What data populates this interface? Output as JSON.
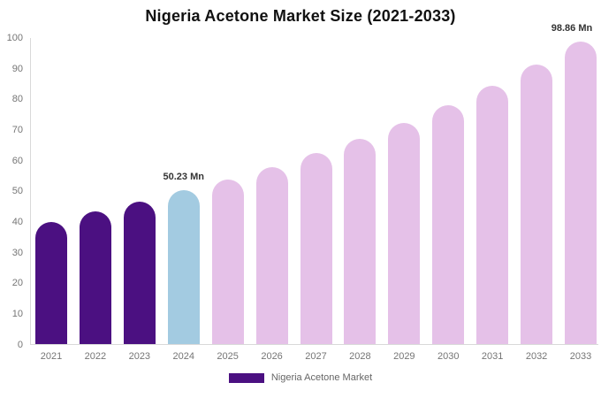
{
  "chart_data": {
    "type": "bar",
    "title": "Nigeria Acetone Market Size (2021-2033)",
    "categories": [
      "2021",
      "2022",
      "2023",
      "2024",
      "2025",
      "2026",
      "2027",
      "2028",
      "2029",
      "2030",
      "2031",
      "2032",
      "2033"
    ],
    "values": [
      40.1,
      43.3,
      46.6,
      50.23,
      53.7,
      57.9,
      62.4,
      67.2,
      72.4,
      78.0,
      84.3,
      91.2,
      98.86
    ],
    "unit": "Mn",
    "xlabel": "",
    "ylabel": "",
    "ylim": [
      0,
      100
    ],
    "yticks": [
      0,
      10,
      20,
      30,
      40,
      50,
      60,
      70,
      80,
      90,
      100
    ],
    "grid": false,
    "legend_position": "bottom",
    "colors": {
      "historical": "#4B1081",
      "current": "#A3CBE1",
      "forecast": "#E5C1E8"
    },
    "bar_color_roles": [
      "historical",
      "historical",
      "historical",
      "current",
      "forecast",
      "forecast",
      "forecast",
      "forecast",
      "forecast",
      "forecast",
      "forecast",
      "forecast",
      "forecast"
    ],
    "data_labels": [
      {
        "index": 3,
        "text": "50.23 Mn"
      },
      {
        "index": 12,
        "text": "98.86 Mn"
      }
    ],
    "legend": {
      "entries": [
        {
          "label": "Nigeria Acetone Market",
          "color": "#4B1081"
        }
      ]
    }
  }
}
